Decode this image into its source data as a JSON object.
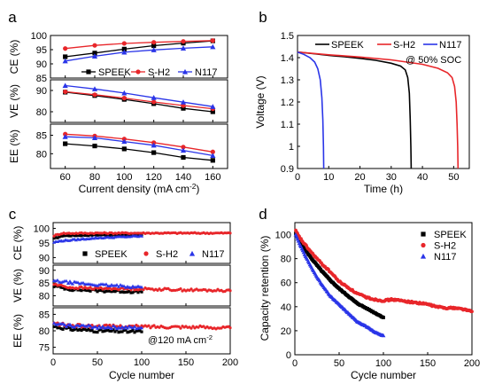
{
  "colors": {
    "SPEEK": "#000000",
    "S-H2": "#e8262a",
    "N117": "#2a35e8"
  },
  "chart_data": [
    {
      "panel": "a",
      "type": "line",
      "x": [
        60,
        80,
        100,
        120,
        140,
        160
      ],
      "xlabel_parts": [
        "Current density (mA cm",
        "-2",
        ")"
      ],
      "xlim": [
        50,
        170
      ],
      "xticks": [
        60,
        80,
        100,
        120,
        140,
        160
      ],
      "legend": {
        "placement": "lower-right of CE subplot",
        "entries": [
          "SPEEK",
          "S-H2",
          "N117"
        ]
      },
      "subplots": [
        {
          "ylabel": "CE (%)",
          "ylim": [
            85,
            100
          ],
          "yticks": [
            85,
            90,
            95,
            100
          ],
          "series": [
            {
              "name": "SPEEK",
              "marker": "square",
              "values": [
                92.5,
                93.8,
                95.2,
                96.4,
                97.3,
                98.1
              ]
            },
            {
              "name": "S-H2",
              "marker": "circle",
              "values": [
                95.4,
                96.5,
                97.2,
                97.6,
                97.9,
                98.2
              ]
            },
            {
              "name": "N117",
              "marker": "triangle",
              "values": [
                91.0,
                92.7,
                94.1,
                94.9,
                95.5,
                96.0
              ]
            }
          ]
        },
        {
          "ylabel": "VE (%)",
          "ylim": [
            75,
            95
          ],
          "yticks": [
            80,
            90
          ],
          "series": [
            {
              "name": "SPEEK",
              "marker": "square",
              "values": [
                89.2,
                87.6,
                85.8,
                83.8,
                81.6,
                80.0
              ]
            },
            {
              "name": "S-H2",
              "marker": "circle",
              "values": [
                89.4,
                88.0,
                86.4,
                84.6,
                82.9,
                81.4
              ]
            },
            {
              "name": "N117",
              "marker": "triangle",
              "values": [
                92.3,
                90.7,
                88.8,
                86.6,
                84.5,
                82.4
              ]
            }
          ]
        },
        {
          "ylabel": "EE (%)",
          "ylim": [
            76,
            88
          ],
          "yticks": [
            80,
            85
          ],
          "series": [
            {
              "name": "SPEEK",
              "marker": "square",
              "values": [
                82.7,
                82.1,
                81.3,
                80.3,
                79.0,
                78.2
              ]
            },
            {
              "name": "S-H2",
              "marker": "circle",
              "values": [
                85.3,
                84.8,
                84.0,
                83.0,
                81.8,
                80.5
              ]
            },
            {
              "name": "N117",
              "marker": "triangle",
              "values": [
                84.6,
                84.3,
                83.3,
                82.3,
                80.9,
                79.5
              ]
            }
          ]
        }
      ]
    },
    {
      "panel": "b",
      "type": "line",
      "xlabel": "Time (h)",
      "ylabel": "Voltage (V)",
      "xlim": [
        0,
        55
      ],
      "ylim": [
        0.9,
        1.5
      ],
      "xticks": [
        0,
        10,
        20,
        30,
        40,
        50
      ],
      "yticks": [
        0.9,
        1.0,
        1.1,
        1.2,
        1.3,
        1.4,
        1.5
      ],
      "annotation": "@ 50% SOC",
      "legend": {
        "placement": "top",
        "entries": [
          "SPEEK",
          "S-H2",
          "N117"
        ]
      },
      "series": [
        {
          "name": "SPEEK",
          "points": [
            [
              0,
              1.425
            ],
            [
              5,
              1.418
            ],
            [
              10,
              1.41
            ],
            [
              15,
              1.404
            ],
            [
              20,
              1.397
            ],
            [
              25,
              1.388
            ],
            [
              30,
              1.375
            ],
            [
              33,
              1.362
            ],
            [
              34.5,
              1.345
            ],
            [
              35.3,
              1.31
            ],
            [
              35.8,
              1.24
            ],
            [
              36.1,
              1.12
            ],
            [
              36.3,
              1.0
            ],
            [
              36.4,
              0.9
            ]
          ]
        },
        {
          "name": "S-H2",
          "points": [
            [
              0,
              1.425
            ],
            [
              10,
              1.413
            ],
            [
              20,
              1.403
            ],
            [
              30,
              1.39
            ],
            [
              40,
              1.37
            ],
            [
              45,
              1.352
            ],
            [
              48,
              1.332
            ],
            [
              49.5,
              1.31
            ],
            [
              50.3,
              1.27
            ],
            [
              50.8,
              1.2
            ],
            [
              51.1,
              1.1
            ],
            [
              51.3,
              1.0
            ],
            [
              51.4,
              0.9
            ]
          ]
        },
        {
          "name": "N117",
          "points": [
            [
              0,
              1.425
            ],
            [
              2,
              1.415
            ],
            [
              4,
              1.4
            ],
            [
              5.5,
              1.38
            ],
            [
              6.5,
              1.35
            ],
            [
              7.3,
              1.3
            ],
            [
              7.8,
              1.22
            ],
            [
              8.1,
              1.12
            ],
            [
              8.3,
              1.0
            ],
            [
              8.4,
              0.9
            ]
          ]
        }
      ]
    },
    {
      "panel": "c",
      "type": "scatter",
      "xlabel": "Cycle number",
      "xlim": [
        0,
        200
      ],
      "xticks": [
        0,
        50,
        100,
        150,
        200
      ],
      "annotation_parts": [
        "@120 mA cm",
        "-2"
      ],
      "legend": {
        "placement": "inside CE subplot",
        "entries": [
          "SPEEK",
          "S-H2",
          "N117"
        ]
      },
      "subplots": [
        {
          "ylabel": "CE (%)",
          "ylim": [
            88,
            102
          ],
          "yticks": [
            90,
            95,
            100
          ],
          "series": [
            {
              "name": "SPEEK",
              "marker": "square",
              "points": [
                [
                  1,
                  96.5
                ],
                [
                  10,
                  97.5
                ],
                [
                  50,
                  97.8
                ],
                [
                  100,
                  97.8
                ]
              ]
            },
            {
              "name": "S-H2",
              "marker": "circle",
              "points": [
                [
                  1,
                  97.5
                ],
                [
                  10,
                  98.3
                ],
                [
                  50,
                  98.4
                ],
                [
                  100,
                  98.4
                ],
                [
                  150,
                  98.4
                ],
                [
                  200,
                  98.4
                ]
              ]
            },
            {
              "name": "N117",
              "marker": "triangle",
              "points": [
                [
                  1,
                  95.3
                ],
                [
                  10,
                  95.8
                ],
                [
                  50,
                  96.8
                ],
                [
                  100,
                  97.4
                ]
              ]
            }
          ]
        },
        {
          "ylabel": "VE (%)",
          "ylim": [
            76,
            92
          ],
          "yticks": [
            80,
            85,
            90
          ],
          "series": [
            {
              "name": "SPEEK",
              "marker": "square",
              "points": [
                [
                  1,
                  83.8
                ],
                [
                  20,
                  82.5
                ],
                [
                  50,
                  82.0
                ],
                [
                  100,
                  81.5
                ]
              ]
            },
            {
              "name": "S-H2",
              "marker": "circle",
              "points": [
                [
                  1,
                  84.5
                ],
                [
                  20,
                  83.2
                ],
                [
                  50,
                  82.9
                ],
                [
                  100,
                  82.7
                ],
                [
                  150,
                  82.3
                ],
                [
                  200,
                  82.0
                ]
              ]
            },
            {
              "name": "N117",
              "marker": "triangle",
              "points": [
                [
                  1,
                  85.8
                ],
                [
                  20,
                  85.2
                ],
                [
                  50,
                  84.3
                ],
                [
                  100,
                  83.4
                ]
              ]
            }
          ]
        },
        {
          "ylabel": "EE (%)",
          "ylim": [
            73,
            87
          ],
          "yticks": [
            75,
            80,
            85
          ],
          "series": [
            {
              "name": "SPEEK",
              "marker": "square",
              "points": [
                [
                  1,
                  81.3
                ],
                [
                  20,
                  80.5
                ],
                [
                  50,
                  80.0
                ],
                [
                  100,
                  79.7
                ]
              ]
            },
            {
              "name": "S-H2",
              "marker": "circle",
              "points": [
                [
                  1,
                  82.2
                ],
                [
                  20,
                  81.6
                ],
                [
                  50,
                  81.4
                ],
                [
                  100,
                  81.3
                ],
                [
                  150,
                  81.2
                ],
                [
                  200,
                  80.9
                ]
              ]
            },
            {
              "name": "N117",
              "marker": "triangle",
              "points": [
                [
                  1,
                  82.0
                ],
                [
                  20,
                  81.6
                ],
                [
                  50,
                  81.2
                ],
                [
                  100,
                  80.9
                ]
              ]
            }
          ]
        }
      ]
    },
    {
      "panel": "d",
      "type": "scatter",
      "xlabel": "Cycle number",
      "ylabel": "Capacity retention (%)",
      "xlim": [
        0,
        200
      ],
      "ylim": [
        0,
        110
      ],
      "xticks": [
        0,
        50,
        100,
        150,
        200
      ],
      "yticks": [
        0,
        20,
        40,
        60,
        80,
        100
      ],
      "legend": {
        "placement": "top-right",
        "entries": [
          "SPEEK",
          "S-H2",
          "N117"
        ]
      },
      "series": [
        {
          "name": "SPEEK",
          "marker": "square",
          "points": [
            [
              1,
              101
            ],
            [
              5,
              95
            ],
            [
              10,
              89
            ],
            [
              20,
              79
            ],
            [
              30,
              70
            ],
            [
              40,
              62
            ],
            [
              50,
              55
            ],
            [
              60,
              49
            ],
            [
              70,
              43
            ],
            [
              80,
              39
            ],
            [
              90,
              35
            ],
            [
              100,
              31
            ]
          ]
        },
        {
          "name": "S-H2",
          "marker": "circle",
          "points": [
            [
              1,
              103
            ],
            [
              5,
              98
            ],
            [
              10,
              93
            ],
            [
              20,
              84
            ],
            [
              30,
              76
            ],
            [
              40,
              69
            ],
            [
              50,
              61
            ],
            [
              60,
              56
            ],
            [
              70,
              51
            ],
            [
              80,
              48
            ],
            [
              90,
              46
            ],
            [
              100,
              45
            ],
            [
              110,
              46
            ],
            [
              120,
              45
            ],
            [
              130,
              44
            ],
            [
              140,
              43
            ],
            [
              150,
              42
            ],
            [
              160,
              40
            ],
            [
              170,
              39
            ],
            [
              180,
              39
            ],
            [
              190,
              38
            ],
            [
              200,
              36
            ]
          ]
        },
        {
          "name": "N117",
          "marker": "triangle",
          "points": [
            [
              1,
              100
            ],
            [
              5,
              93
            ],
            [
              10,
              85
            ],
            [
              20,
              71
            ],
            [
              30,
              59
            ],
            [
              40,
              49
            ],
            [
              50,
              42
            ],
            [
              60,
              35
            ],
            [
              70,
              28
            ],
            [
              80,
              24
            ],
            [
              90,
              19
            ],
            [
              100,
              16
            ]
          ]
        }
      ]
    }
  ]
}
